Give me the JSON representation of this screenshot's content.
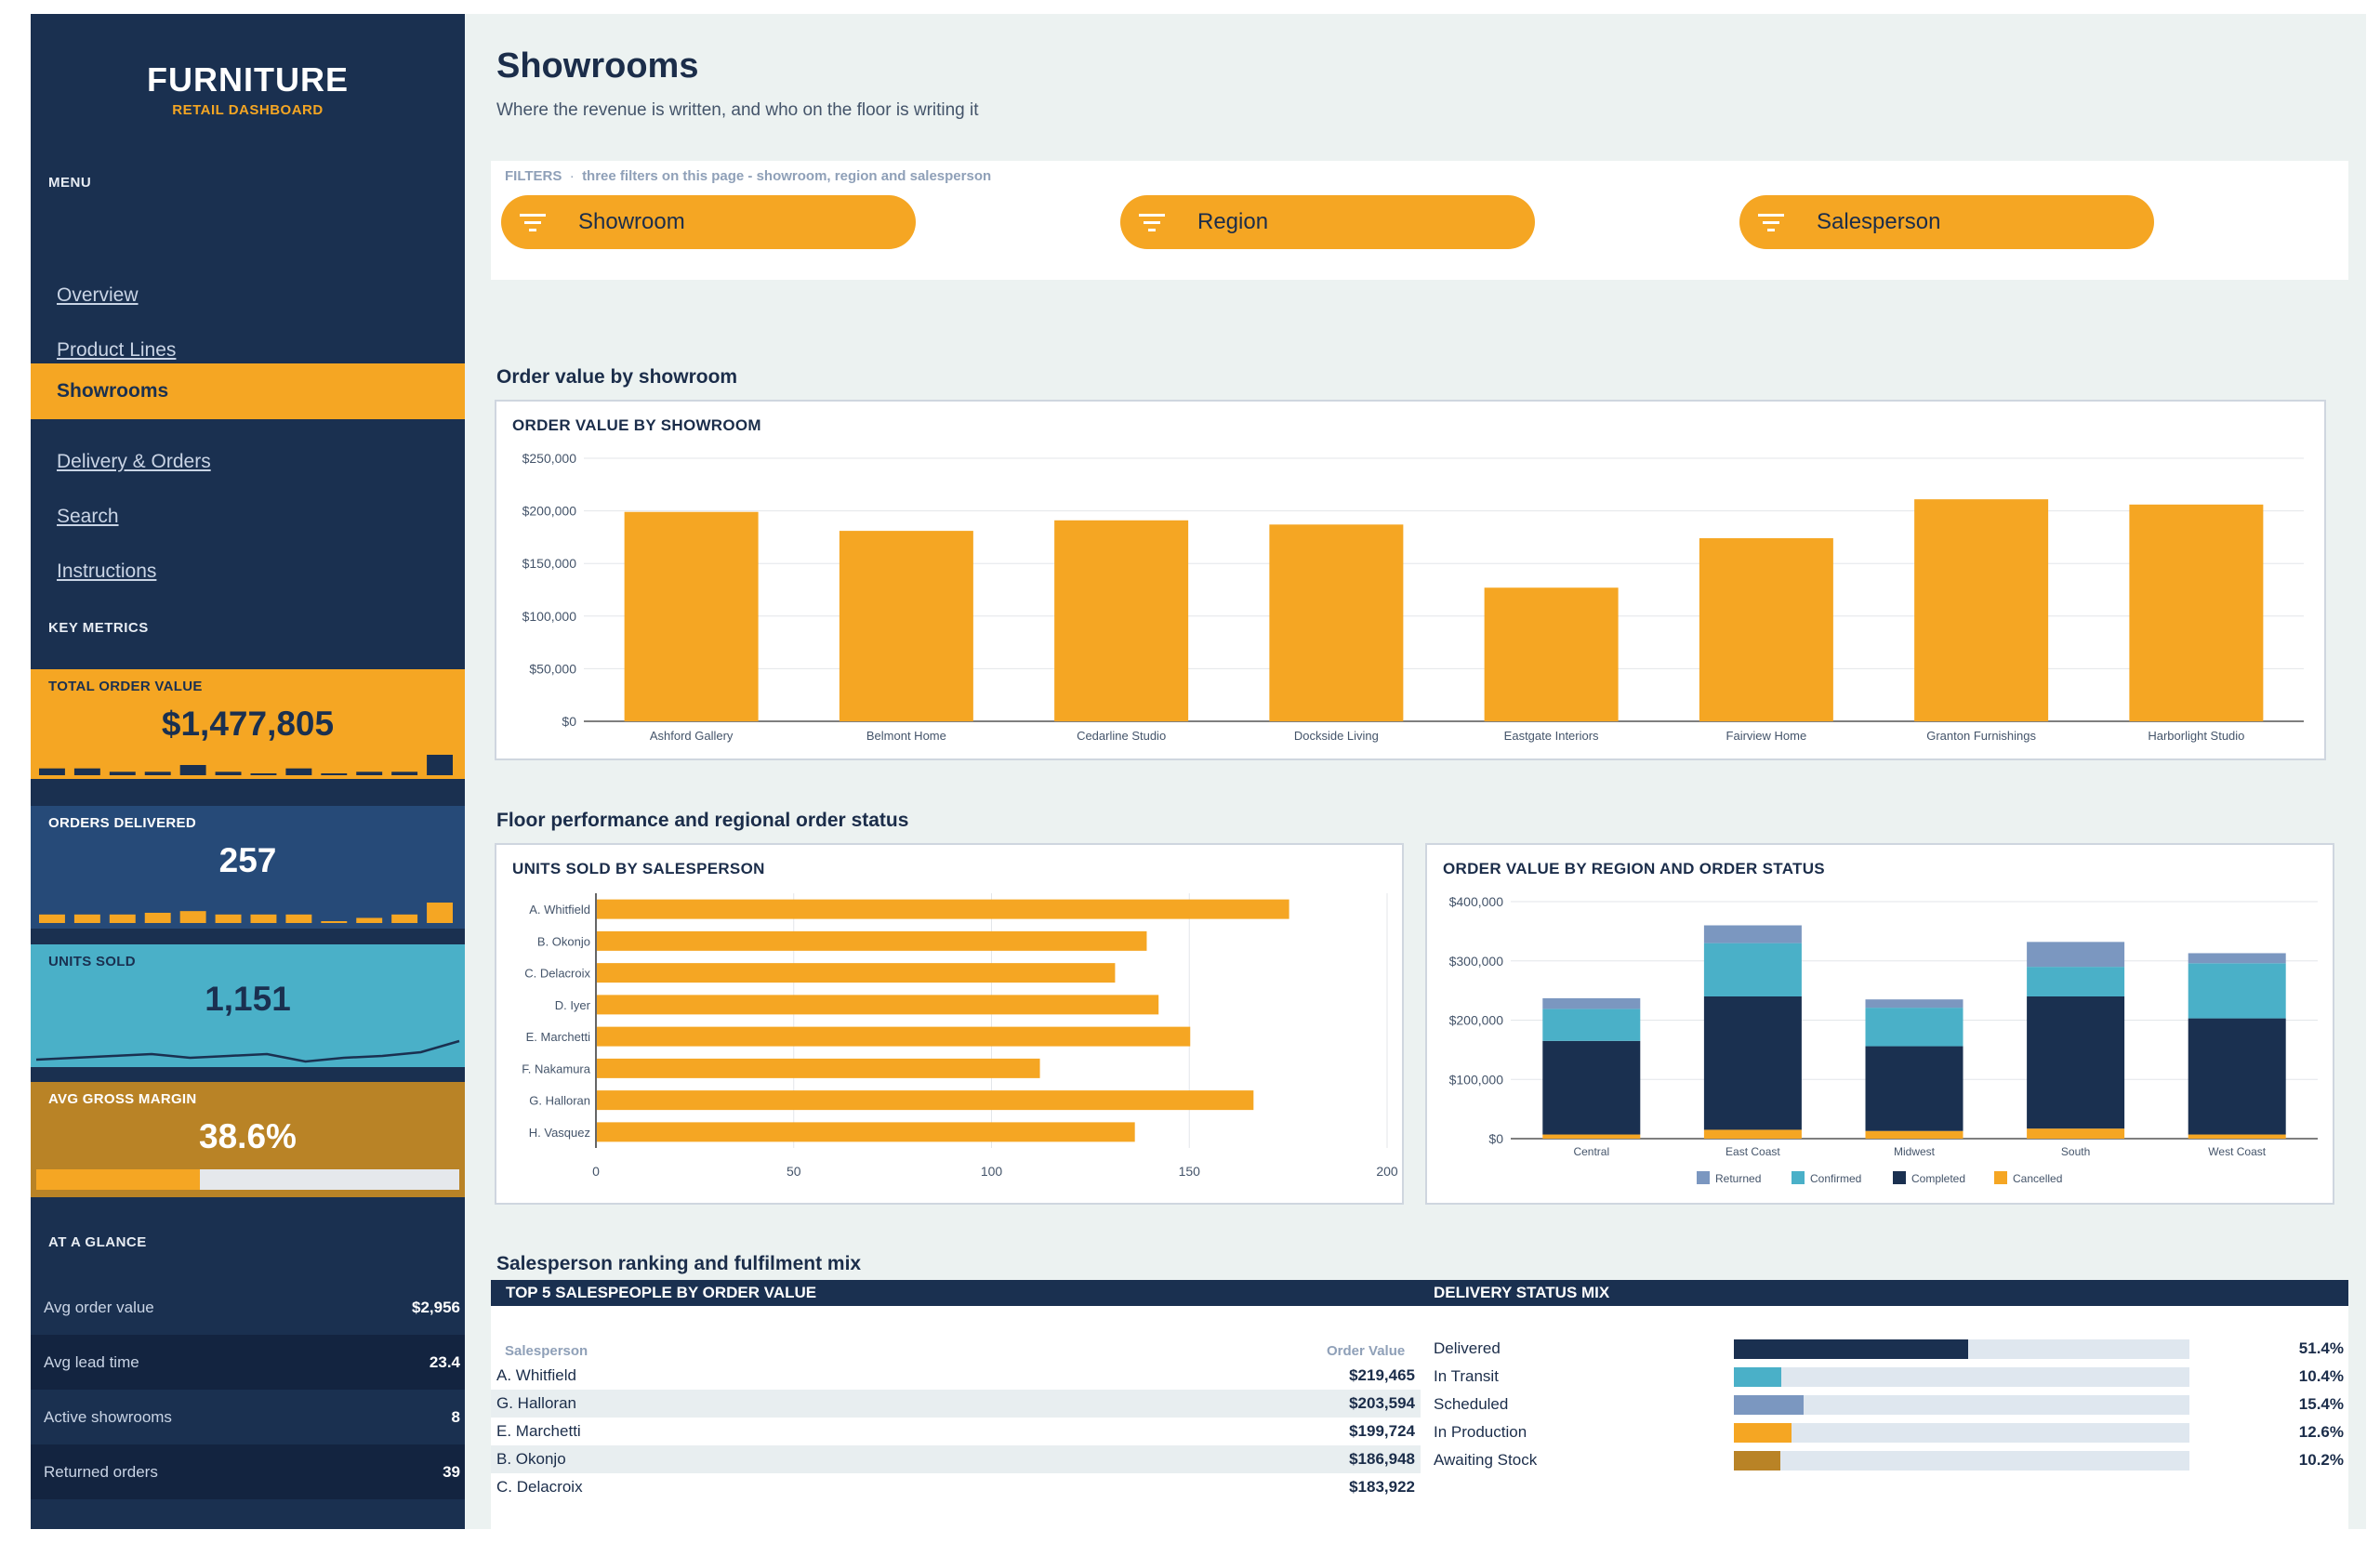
{
  "colors": {
    "navy": "#1a3050",
    "orange": "#f5a623",
    "teal": "#4ab0c8",
    "steel": "#7b97c0",
    "gold": "#b98326",
    "blue_kpi": "#264a78"
  },
  "sidebar": {
    "brand_title": "FURNITURE",
    "brand_subtitle": "RETAIL DASHBOARD",
    "menu_heading": "MENU",
    "menu": [
      {
        "label": "Overview",
        "active": false
      },
      {
        "label": "Product Lines",
        "active": false
      },
      {
        "label": "Showrooms",
        "active": true
      },
      {
        "label": "Delivery & Orders",
        "active": false
      },
      {
        "label": "Search",
        "active": false
      },
      {
        "label": "Instructions",
        "active": false
      }
    ],
    "metrics_heading": "KEY METRICS",
    "kpis": [
      {
        "label": "TOTAL ORDER VALUE",
        "value": "$1,477,805",
        "sparkline": [
          4,
          4,
          2,
          2,
          6,
          2,
          1,
          4,
          1,
          2,
          2,
          12
        ]
      },
      {
        "label": "ORDERS DELIVERED",
        "value": "257",
        "sparkline": [
          5,
          5,
          5,
          6,
          7,
          5,
          5,
          5,
          1,
          3,
          5,
          12
        ]
      },
      {
        "label": "UNITS SOLD",
        "value": "1,151",
        "sparkline": [
          4,
          5,
          6,
          7,
          5,
          6,
          7,
          3,
          5,
          6,
          8,
          14
        ]
      },
      {
        "label": "AVG GROSS MARGIN",
        "value": "38.6%",
        "progress": 0.386
      }
    ],
    "glance_heading": "AT A GLANCE",
    "glance": [
      {
        "label": "Avg order value",
        "value": "$2,956"
      },
      {
        "label": "Avg lead time",
        "value": "23.4"
      },
      {
        "label": "Active showrooms",
        "value": "8"
      },
      {
        "label": "Returned orders",
        "value": "39"
      }
    ]
  },
  "header": {
    "title": "Showrooms",
    "subtitle": "Where the revenue is written, and who on the floor is writing it"
  },
  "filters": {
    "heading": "FILTERS",
    "note": "three filters on this page - showroom, region and salesperson",
    "items": [
      {
        "label": "Showroom",
        "icon": "filter-icon"
      },
      {
        "label": "Region",
        "icon": "filter-icon"
      },
      {
        "label": "Salesperson",
        "icon": "filter-icon"
      }
    ]
  },
  "sections": {
    "showroom": "Order value by showroom",
    "floor": "Floor performance and regional order status",
    "ranking": "Salesperson ranking and fulfilment mix"
  },
  "chart_data": [
    {
      "type": "bar",
      "title": "ORDER VALUE BY SHOWROOM",
      "categories": [
        "Ashford Gallery",
        "Belmont Home",
        "Cedarline Studio",
        "Dockside Living",
        "Eastgate Interiors",
        "Fairview Home",
        "Granton Furnishings",
        "Harborlight Studio"
      ],
      "values": [
        199000,
        181000,
        191000,
        187000,
        127000,
        174000,
        211000,
        206000
      ],
      "ylim": [
        0,
        250000
      ],
      "yticks": [
        "$0",
        "$50,000",
        "$100,000",
        "$150,000",
        "$200,000",
        "$250,000"
      ],
      "color": "#f5a623",
      "grid": true
    },
    {
      "type": "bar",
      "orientation": "horizontal",
      "title": "UNITS SOLD BY SALESPERSON",
      "categories": [
        "A. Whitfield",
        "B. Okonjo",
        "C. Delacroix",
        "D. Iyer",
        "E. Marchetti",
        "F. Nakamura",
        "G. Halloran",
        "H. Vasquez"
      ],
      "values": [
        175,
        139,
        131,
        142,
        150,
        112,
        166,
        136
      ],
      "xlim": [
        0,
        200
      ],
      "xticks": [
        "0",
        "50",
        "100",
        "150",
        "200"
      ],
      "color": "#f5a623",
      "grid": true
    },
    {
      "type": "bar",
      "stacked": true,
      "title": "ORDER VALUE BY REGION AND ORDER STATUS",
      "categories": [
        "Central",
        "East Coast",
        "Midwest",
        "South",
        "West Coast"
      ],
      "series": [
        {
          "name": "Cancelled",
          "color": "#f5a623",
          "values": [
            7000,
            15000,
            13000,
            17000,
            7000
          ]
        },
        {
          "name": "Completed",
          "color": "#1a3050",
          "values": [
            158000,
            225000,
            143000,
            223000,
            196000
          ]
        },
        {
          "name": "Confirmed",
          "color": "#4ab0c8",
          "values": [
            54000,
            90000,
            65000,
            50000,
            93000
          ]
        },
        {
          "name": "Returned",
          "color": "#7b97c0",
          "values": [
            18000,
            30000,
            14000,
            42000,
            17000
          ]
        }
      ],
      "legend_order": [
        "Returned",
        "Confirmed",
        "Completed",
        "Cancelled"
      ],
      "legend_position": "bottom",
      "ylim": [
        0,
        400000
      ],
      "yticks": [
        "$0",
        "$100,000",
        "$200,000",
        "$300,000",
        "$400,000"
      ],
      "grid": true
    }
  ],
  "top_salespeople": {
    "title": "TOP 5 SALESPEOPLE BY ORDER VALUE",
    "columns": [
      "Salesperson",
      "Order Value"
    ],
    "rows": [
      {
        "name": "A. Whitfield",
        "value": "$219,465"
      },
      {
        "name": "G. Halloran",
        "value": "$203,594"
      },
      {
        "name": "E. Marchetti",
        "value": "$199,724"
      },
      {
        "name": "B. Okonjo",
        "value": "$186,948"
      },
      {
        "name": "C. Delacroix",
        "value": "$183,922"
      }
    ]
  },
  "delivery_mix": {
    "title": "DELIVERY STATUS MIX",
    "rows": [
      {
        "label": "Delivered",
        "pct": "51.4%",
        "fraction": 0.514,
        "color": "#1a3050"
      },
      {
        "label": "In Transit",
        "pct": "10.4%",
        "fraction": 0.104,
        "color": "#4ab0c8"
      },
      {
        "label": "Scheduled",
        "pct": "15.4%",
        "fraction": 0.154,
        "color": "#7b97c0"
      },
      {
        "label": "In Production",
        "pct": "12.6%",
        "fraction": 0.126,
        "color": "#f5a623"
      },
      {
        "label": "Awaiting Stock",
        "pct": "10.2%",
        "fraction": 0.102,
        "color": "#b98326"
      }
    ]
  }
}
